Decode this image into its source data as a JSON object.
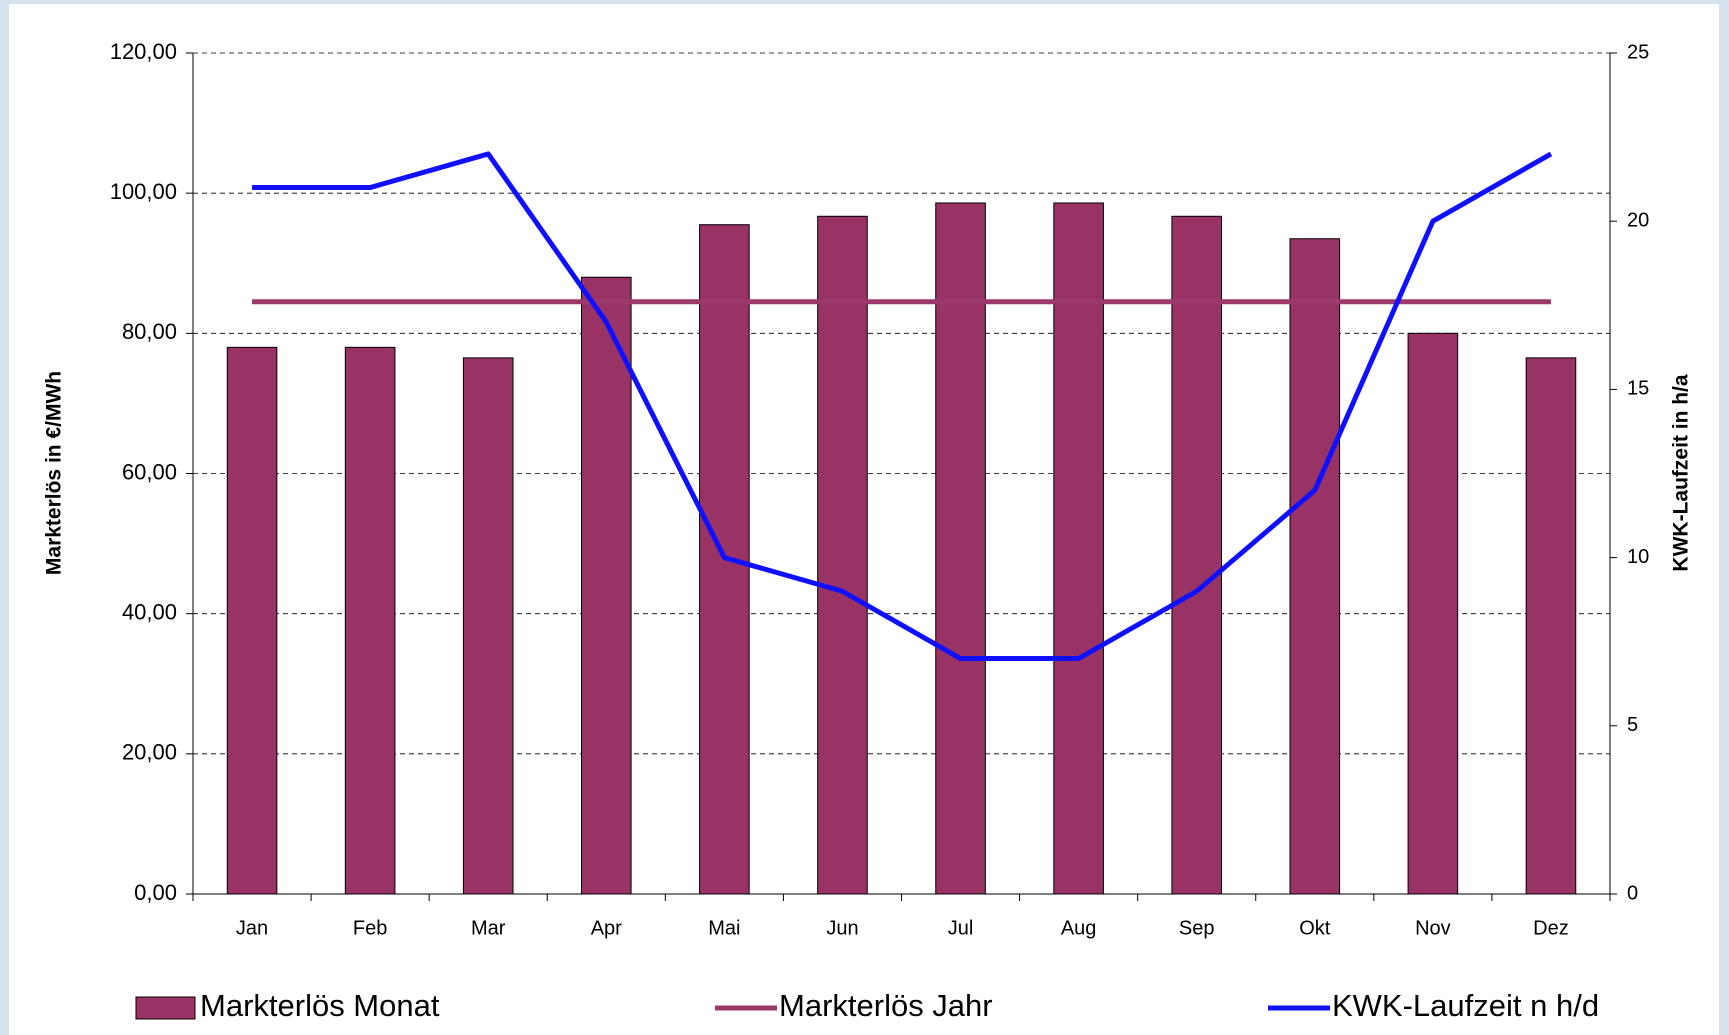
{
  "chart_data": {
    "type": "bar",
    "categories": [
      "Jan",
      "Feb",
      "Mar",
      "Apr",
      "Mai",
      "Jun",
      "Jul",
      "Aug",
      "Sep",
      "Okt",
      "Nov",
      "Dez"
    ],
    "ylabel": "Markterlös in €/MWh",
    "y2label": "KWK-Laufzeit in h/a",
    "ylim": [
      0,
      120
    ],
    "yticks": [
      {
        "value": 0,
        "label": "0,00"
      },
      {
        "value": 20,
        "label": "20,00"
      },
      {
        "value": 40,
        "label": "40,00"
      },
      {
        "value": 60,
        "label": "60,00"
      },
      {
        "value": 80,
        "label": "80,00"
      },
      {
        "value": 100,
        "label": "100,00"
      },
      {
        "value": 120,
        "label": "120,00"
      }
    ],
    "y2lim": [
      0,
      25
    ],
    "y2ticks": [
      0,
      5,
      10,
      15,
      20,
      25
    ],
    "grid": true,
    "series": [
      {
        "name": "Markterlös Monat",
        "type": "bar",
        "color": "#993366",
        "values": [
          78,
          78,
          76.5,
          88,
          95.5,
          96.7,
          98.6,
          98.6,
          96.7,
          93.5,
          80,
          76.5
        ]
      },
      {
        "name": "Markterlös Jahr",
        "type": "line",
        "color": "#9b3a6a",
        "values": [
          84.5,
          84.5,
          84.5,
          84.5,
          84.5,
          84.5,
          84.5,
          84.5,
          84.5,
          84.5,
          84.5,
          84.5
        ]
      },
      {
        "name": "KWK-Laufzeit n h/d",
        "type": "line",
        "axis": "y2",
        "color": "#1010ff",
        "values": [
          21,
          21,
          22,
          17,
          10,
          9,
          7,
          7,
          9,
          12,
          20,
          22
        ]
      }
    ]
  }
}
